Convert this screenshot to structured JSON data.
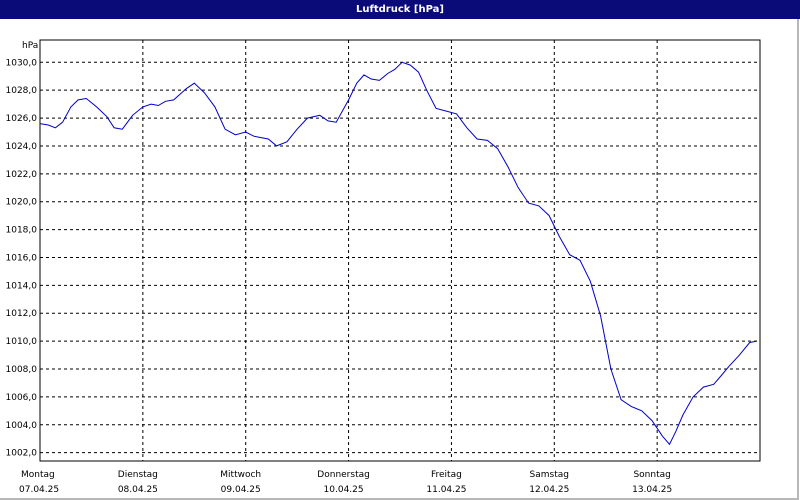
{
  "chart_data": {
    "type": "line",
    "title": "Luftdruck [hPa]",
    "ylabel": "hPa",
    "xlabel": "",
    "ylim": [
      1001.4,
      1031.6
    ],
    "yticks": [
      "1002,0",
      "1004,0",
      "1006,0",
      "1008,0",
      "1010,0",
      "1012,0",
      "1014,0",
      "1016,0",
      "1018,0",
      "1020,0",
      "1022,0",
      "1024,0",
      "1026,0",
      "1028,0",
      "1030,0"
    ],
    "ytick_values": [
      1002,
      1004,
      1006,
      1008,
      1010,
      1012,
      1014,
      1016,
      1018,
      1020,
      1022,
      1024,
      1026,
      1028,
      1030
    ],
    "grid": true,
    "line_color": "#0000c8",
    "days": [
      {
        "day": "Montag",
        "date": "07.04.25"
      },
      {
        "day": "Dienstag",
        "date": "08.04.25"
      },
      {
        "day": "Mittwoch",
        "date": "09.04.25"
      },
      {
        "day": "Donnerstag",
        "date": "10.04.25"
      },
      {
        "day": "Freitag",
        "date": "11.04.25"
      },
      {
        "day": "Samstag",
        "date": "12.04.25"
      },
      {
        "day": "Sonntag",
        "date": "13.04.25"
      }
    ],
    "x_days": [
      0,
      0.08,
      0.15,
      0.22,
      0.3,
      0.37,
      0.45,
      0.55,
      0.65,
      0.72,
      0.8,
      0.9,
      1.0,
      1.08,
      1.15,
      1.22,
      1.3,
      1.36,
      1.42,
      1.5,
      1.6,
      1.7,
      1.8,
      1.9,
      2.0,
      2.08,
      2.15,
      2.22,
      2.3,
      2.4,
      2.5,
      2.6,
      2.72,
      2.8,
      2.88,
      3.0,
      3.08,
      3.15,
      3.22,
      3.3,
      3.38,
      3.45,
      3.52,
      3.6,
      3.68,
      3.76,
      3.85,
      3.95,
      4.05,
      4.15,
      4.25,
      4.35,
      4.45,
      4.55,
      4.65,
      4.75,
      4.85,
      4.95,
      5.05,
      5.15,
      5.25,
      5.35,
      5.45,
      5.55,
      5.65,
      5.75,
      5.85,
      5.95,
      6.05,
      6.12,
      6.18,
      6.25,
      6.35,
      6.45,
      6.55,
      6.62,
      6.7,
      6.8,
      6.9,
      6.97
    ],
    "values": [
      1025.6,
      1025.5,
      1025.3,
      1025.7,
      1026.8,
      1027.3,
      1027.4,
      1026.8,
      1026.1,
      1025.3,
      1025.2,
      1026.2,
      1026.8,
      1027.0,
      1026.9,
      1027.2,
      1027.3,
      1027.7,
      1028.1,
      1028.5,
      1027.8,
      1026.8,
      1025.2,
      1024.8,
      1025.0,
      1024.7,
      1024.6,
      1024.5,
      1024.0,
      1024.3,
      1025.2,
      1026.0,
      1026.2,
      1025.8,
      1025.7,
      1027.3,
      1028.5,
      1029.1,
      1028.8,
      1028.7,
      1029.2,
      1029.5,
      1030.0,
      1029.8,
      1029.3,
      1028.0,
      1026.7,
      1026.5,
      1026.3,
      1025.3,
      1024.5,
      1024.4,
      1023.8,
      1022.5,
      1021.0,
      1019.9,
      1019.7,
      1019.0,
      1017.5,
      1016.2,
      1015.8,
      1014.3,
      1011.8,
      1008.0,
      1005.8,
      1005.3,
      1005.0,
      1004.3,
      1003.2,
      1002.6,
      1003.5,
      1004.7,
      1006.0,
      1006.7,
      1006.9,
      1007.5,
      1008.2,
      1009.0,
      1009.9,
      1010.0
    ]
  }
}
